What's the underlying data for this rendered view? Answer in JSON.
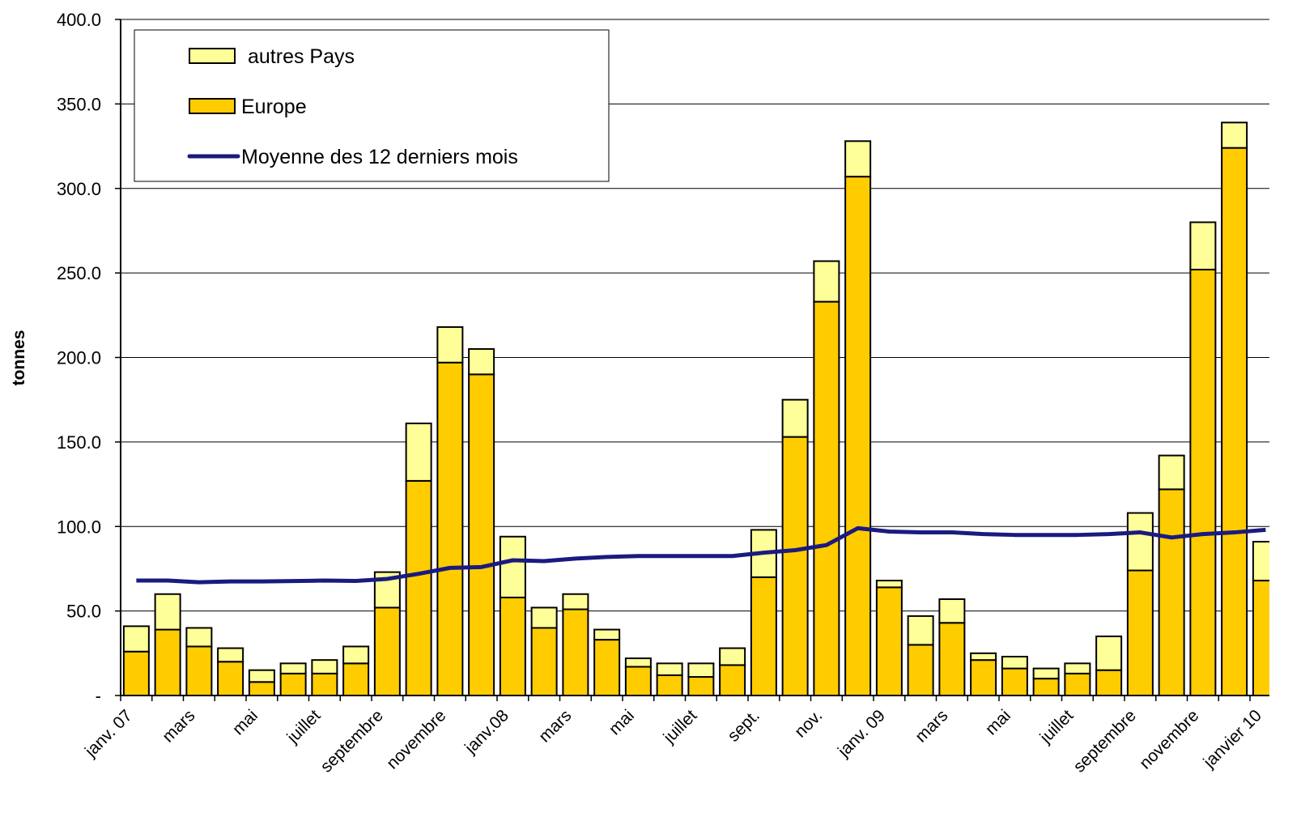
{
  "chart_data": {
    "type": "stacked-bar-line",
    "y_label": "tonnes",
    "categories": [
      "janv. 07",
      null,
      "mars",
      null,
      "mai",
      null,
      "juillet",
      null,
      "septembre",
      null,
      "novembre",
      null,
      "janv.08",
      null,
      "mars",
      null,
      "mai",
      null,
      "juillet",
      null,
      "sept.",
      null,
      "nov.",
      null,
      "janv. 09",
      null,
      "mars",
      null,
      "mai",
      null,
      "juillet",
      null,
      "septembre",
      null,
      "novembre",
      null,
      "janvier 10"
    ],
    "series": [
      {
        "name": "Europe",
        "kind": "bar",
        "color": "#ffcc00",
        "values": [
          26,
          39,
          29,
          20,
          8,
          13,
          13,
          19,
          52,
          127,
          197,
          190,
          58,
          40,
          51,
          33,
          17,
          12,
          11,
          18,
          70,
          153,
          233,
          307,
          64,
          30,
          43,
          21,
          16,
          10,
          13,
          15,
          74,
          122,
          252,
          324,
          68
        ]
      },
      {
        "name": "autres Pays",
        "kind": "bar",
        "color": "#ffff99",
        "values": [
          15,
          21,
          11,
          8,
          7,
          6,
          8,
          10,
          21,
          34,
          21,
          15,
          36,
          12,
          9,
          6,
          5,
          7,
          8,
          10,
          28,
          22,
          24,
          21,
          4,
          17,
          14,
          4,
          7,
          6,
          6,
          20,
          34,
          20,
          28,
          15,
          23
        ]
      },
      {
        "name": "Moyenne des 12 derniers mois",
        "kind": "line",
        "color": "#1a1a80",
        "values": [
          68,
          68,
          67,
          67.5,
          67.5,
          67.7,
          68,
          67.8,
          69,
          72,
          75.5,
          76,
          80,
          79.5,
          81,
          82,
          82.5,
          82.5,
          82.5,
          82.5,
          84.5,
          86,
          89,
          99,
          97,
          96.5,
          96.5,
          95.5,
          95,
          95,
          95,
          95.5,
          96.5,
          93.5,
          95.5,
          96.5,
          98
        ]
      }
    ],
    "legend_order": [
      1,
      0,
      2
    ],
    "ylim": [
      0,
      400
    ],
    "yticks": [
      {
        "value": 0,
        "label": "-"
      },
      {
        "value": 50,
        "label": "50.0"
      },
      {
        "value": 100,
        "label": "100.0"
      },
      {
        "value": 150,
        "label": "150.0"
      },
      {
        "value": 200,
        "label": "200.0"
      },
      {
        "value": 250,
        "label": "250.0"
      },
      {
        "value": 300,
        "label": "300.0"
      },
      {
        "value": 350,
        "label": "350.0"
      },
      {
        "value": 400,
        "label": "400.0"
      }
    ],
    "grid": true
  }
}
